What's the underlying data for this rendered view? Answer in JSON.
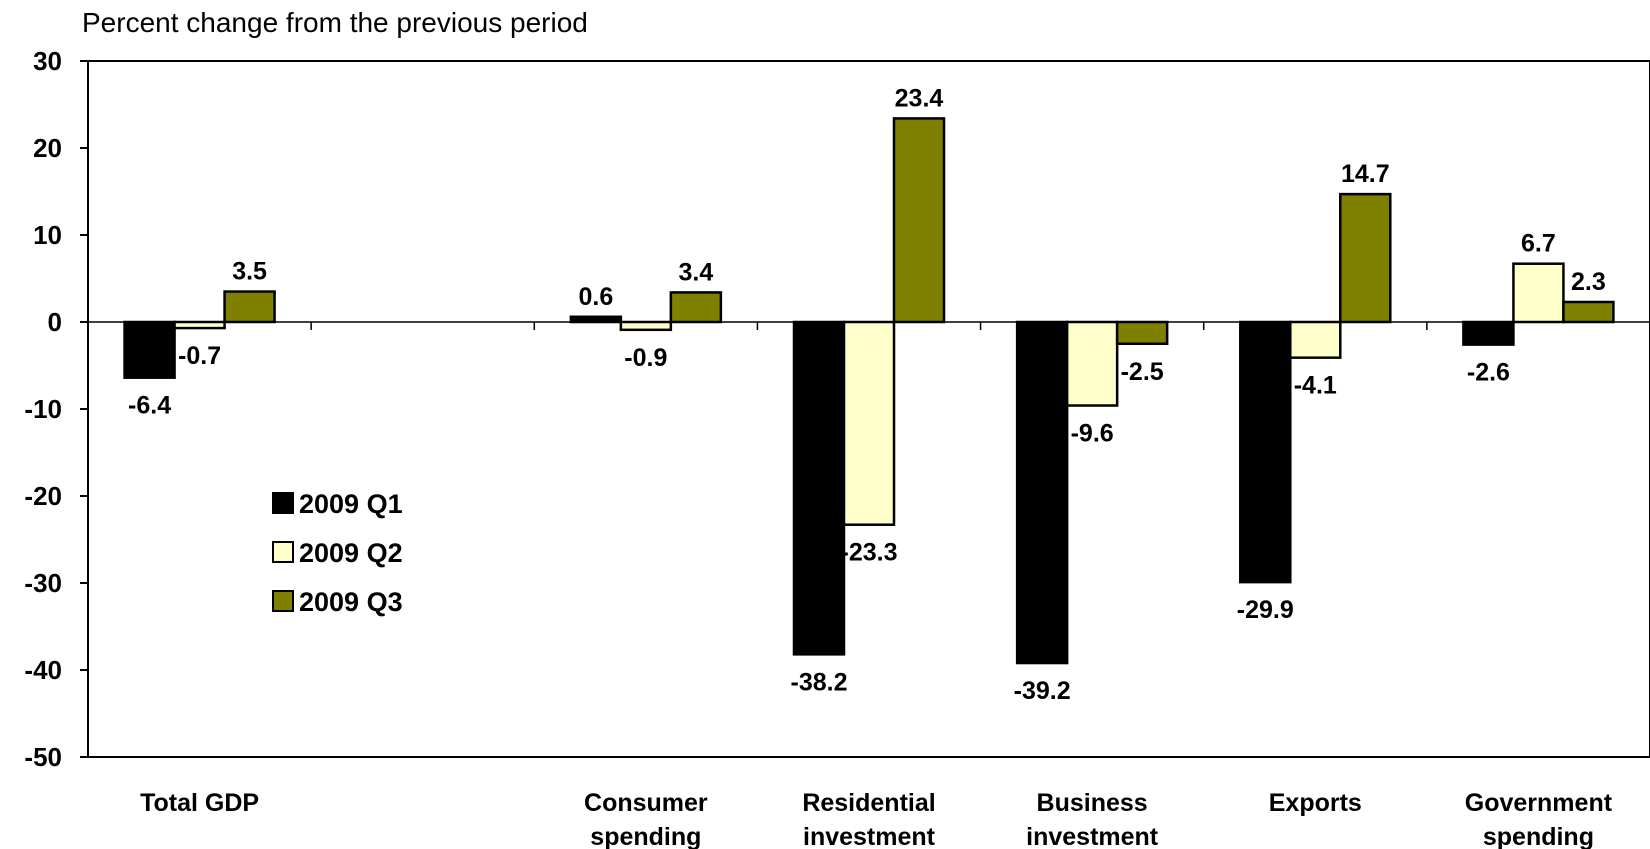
{
  "chart_data": {
    "type": "bar",
    "ylabel": "Percent change from the previous period",
    "ylim": [
      -50,
      30
    ],
    "yticks": [
      30,
      20,
      10,
      0,
      -10,
      -20,
      -30,
      -40,
      -50
    ],
    "categories": [
      [
        "Total GDP"
      ],
      [
        "",
        ""
      ],
      [
        "Consumer",
        "spending"
      ],
      [
        "Residential",
        "investment"
      ],
      [
        "Business",
        "investment"
      ],
      [
        "Exports"
      ],
      [
        "Government",
        "spending"
      ]
    ],
    "series": [
      {
        "name": "2009 Q1",
        "color": "#000000",
        "values": [
          -6.4,
          null,
          0.6,
          -38.2,
          -39.2,
          -29.9,
          -2.6
        ]
      },
      {
        "name": "2009 Q2",
        "color": "#FFFFCC",
        "values": [
          -0.7,
          null,
          -0.9,
          -23.3,
          -9.6,
          -4.1,
          6.7
        ]
      },
      {
        "name": "2009 Q3",
        "color": "#808000",
        "values": [
          3.5,
          null,
          3.4,
          23.4,
          -2.5,
          14.7,
          2.3
        ]
      }
    ],
    "grid": false,
    "legend": "left-center"
  }
}
